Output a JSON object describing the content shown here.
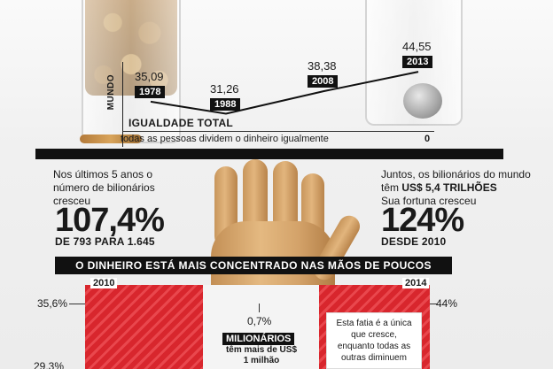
{
  "chart_data": {
    "type": "line",
    "series": [
      {
        "name": "MUNDO",
        "x": [
          "1978",
          "1988",
          "2008",
          "2013"
        ],
        "values": [
          35.09,
          31.26,
          38.38,
          44.55
        ]
      }
    ],
    "value_labels": [
      "35,09",
      "31,26",
      "38,38",
      "44,55"
    ],
    "year_labels": [
      "1978",
      "1988",
      "2008",
      "2013"
    ],
    "ylabel": "MUNDO"
  },
  "equality": {
    "title": "IGUALDADE TOTAL",
    "desc": "todas as pessoas dividem o dinheiro igualmente",
    "value": "0"
  },
  "left_stat": {
    "text": "Nos últimos 5 anos o número de bilionários cresceu",
    "big": "107,4%",
    "sub": "DE 793 PARA 1.645"
  },
  "right_stat": {
    "text_pre": "Juntos, os bilionários do mundo têm",
    "text_bold": "US$ 5,4 TRILHÕES",
    "text_post": "Sua fortuna cresceu",
    "big": "124%",
    "sub": "DESDE 2010"
  },
  "bottom": {
    "banner": "O DINHEIRO ESTÁ MAIS CONCENTRADO NAS MÃOS DE POUCOS",
    "year_left": "2010",
    "year_right": "2014",
    "pct_left": "35,6%",
    "pct_left_low": "29,3%",
    "pct_right": "44%",
    "pct_mid": "0,7%",
    "milionarios": "MILIONÁRIOS",
    "mil_desc": "têm mais de US$ 1 milhão",
    "fatia": "Esta fatia é a única que cresce, enquanto todas as outras diminuem"
  },
  "colors": {
    "red": "#d8262d",
    "black": "#111111"
  }
}
